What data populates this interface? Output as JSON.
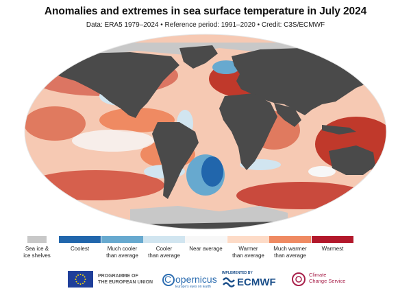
{
  "title": "Anomalies and extremes in sea surface temperature in July 2024",
  "subtitle": "Data: ERA5 1979–2024 • Reference period: 1991–2020 • Credit: C3S/ECMWF",
  "colors": {
    "land": "#4a4a4a",
    "sea_ice": "#c8c8c8",
    "coolest": "#2166ac",
    "much_cooler": "#67a9cf",
    "cooler": "#d1e5f0",
    "near_average": "#f7f7f7",
    "warmer": "#fddbc7",
    "much_warmer": "#ef8a62",
    "warmest": "#b2182b"
  },
  "legend": {
    "items": [
      {
        "label_1": "Sea ice &",
        "label_2": "ice shelves",
        "color": "#c8c8c8"
      },
      {
        "label_1": "Coolest",
        "label_2": "",
        "color": "#2166ac"
      },
      {
        "label_1": "Much cooler",
        "label_2": "than average",
        "color": "#67a9cf"
      },
      {
        "label_1": "Cooler",
        "label_2": "than average",
        "color": "#d1e5f0"
      },
      {
        "label_1": "Near average",
        "label_2": "",
        "color": "#f7f7f7"
      },
      {
        "label_1": "Warmer",
        "label_2": "than average",
        "color": "#fddbc7"
      },
      {
        "label_1": "Much warmer",
        "label_2": "than average",
        "color": "#ef8a62"
      },
      {
        "label_1": "Warmest",
        "label_2": "",
        "color": "#b2182b"
      }
    ]
  },
  "footer": {
    "eu_line1": "PROGRAMME OF",
    "eu_line2": "THE EUROPEAN UNION",
    "copernicus_name": "opernicus",
    "copernicus_letter": "C",
    "copernicus_tagline": "Europe's eyes on Earth",
    "ecmwf_implemented": "IMPLEMENTED BY",
    "ecmwf_name": "ECMWF",
    "c3s_line1": "Climate",
    "c3s_line2": "Change Service"
  }
}
